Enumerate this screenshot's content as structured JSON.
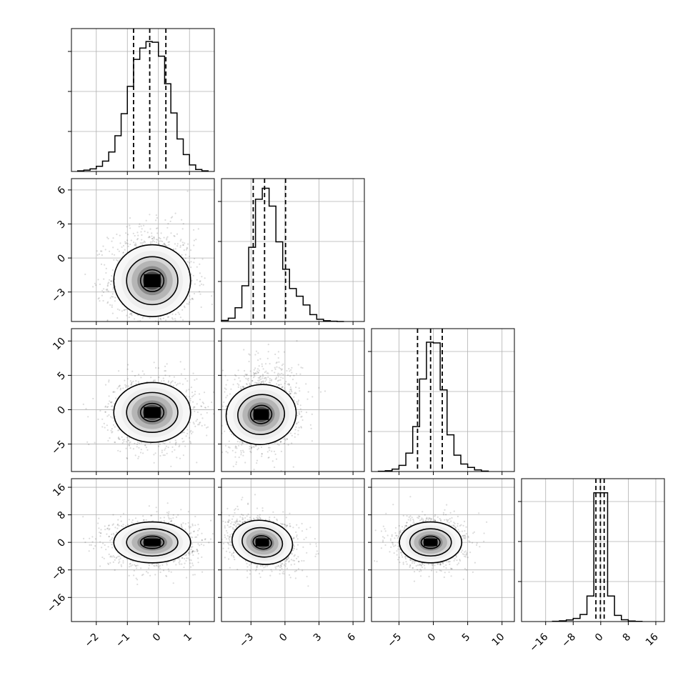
{
  "chart_data": {
    "type": "corner",
    "grid": true,
    "parameters": [
      {
        "id": "p0",
        "range": [
          -2.8,
          1.8
        ],
        "ticks": [
          -2,
          -1,
          0,
          1
        ],
        "tick_labels": [
          "−2",
          "−1",
          "0",
          "1"
        ],
        "hist_quantiles": [
          -0.8,
          -0.28,
          0.24
        ],
        "hist_edges": [
          -2.6,
          -2.4,
          -2.2,
          -2.0,
          -1.8,
          -1.6,
          -1.4,
          -1.2,
          -1.0,
          -0.8,
          -0.6,
          -0.4,
          -0.2,
          0.0,
          0.2,
          0.4,
          0.6,
          0.8,
          1.0,
          1.2,
          1.4,
          1.6
        ],
        "hist_counts": [
          2,
          4,
          8,
          16,
          32,
          60,
          110,
          178,
          262,
          345,
          380,
          400,
          398,
          355,
          270,
          180,
          100,
          52,
          20,
          6,
          2
        ],
        "hist_ylim": [
          0,
          440
        ]
      },
      {
        "id": "p1",
        "range": [
          -5.6,
          7.0
        ],
        "ticks": [
          -3,
          0,
          3,
          6
        ],
        "tick_labels": [
          "−3",
          "0",
          "3",
          "6"
        ],
        "hist_quantiles": [
          -2.8,
          -1.8,
          0.05
        ],
        "hist_edges": [
          -5.6,
          -5.0,
          -4.4,
          -3.8,
          -3.2,
          -2.6,
          -2.0,
          -1.4,
          -0.8,
          -0.2,
          0.4,
          1.0,
          1.6,
          2.2,
          2.8,
          3.4,
          4.0,
          4.6,
          5.2
        ],
        "hist_counts": [
          4,
          12,
          50,
          130,
          270,
          445,
          485,
          420,
          290,
          190,
          120,
          92,
          60,
          25,
          8,
          3,
          1,
          0
        ],
        "hist_ylim": [
          0,
          520
        ]
      },
      {
        "id": "p2",
        "range": [
          -9.0,
          11.8
        ],
        "ticks": [
          -5,
          0,
          5,
          10
        ],
        "tick_labels": [
          "−5",
          "0",
          "5",
          "10"
        ],
        "hist_quantiles": [
          -2.3,
          -0.4,
          1.3
        ],
        "hist_edges": [
          -8.0,
          -7.0,
          -6.0,
          -5.0,
          -4.0,
          -3.0,
          -2.0,
          -1.0,
          0.0,
          1.0,
          2.0,
          3.0,
          4.0,
          5.0,
          6.0,
          7.0,
          8.0
        ],
        "hist_counts": [
          2,
          6,
          18,
          45,
          135,
          330,
          680,
          950,
          945,
          600,
          270,
          120,
          55,
          30,
          12,
          3
        ],
        "hist_ylim": [
          0,
          1050
        ]
      },
      {
        "id": "p3",
        "range": [
          -23,
          18.5
        ],
        "ticks": [
          -16,
          -8,
          0,
          8,
          16
        ],
        "tick_labels": [
          "−16",
          "−8",
          "0",
          "8",
          "16"
        ],
        "hist_quantiles": [
          -1.4,
          -0.1,
          1.0
        ],
        "hist_edges": [
          -14,
          -12,
          -10,
          -8,
          -6,
          -4,
          -2,
          0,
          2,
          4,
          6,
          8,
          10,
          12
        ],
        "hist_counts": [
          3,
          8,
          18,
          35,
          80,
          290,
          1460,
          1460,
          290,
          70,
          20,
          6,
          2
        ],
        "hist_ylim": [
          0,
          1620
        ]
      }
    ],
    "pairs": [
      {
        "id": "p1_vs_p0",
        "x": 0,
        "y": 1,
        "center": [
          -0.2,
          -2.0
        ],
        "sx": 0.6,
        "sy": 1.6,
        "rho": 0.0,
        "contour_levels": [
          0.5,
          1.1,
          1.65
        ],
        "skew_y_up": 0.25
      },
      {
        "id": "p2_vs_p0",
        "x": 0,
        "y": 2,
        "center": [
          -0.2,
          -0.4
        ],
        "sx": 0.6,
        "sy": 2.2,
        "rho": 0.0,
        "contour_levels": [
          0.5,
          1.1,
          1.65
        ],
        "skew_y_up": 0
      },
      {
        "id": "p2_vs_p1",
        "x": 1,
        "y": 2,
        "center": [
          -2.1,
          -0.7
        ],
        "sx": 1.5,
        "sy": 2.2,
        "rho": 0.2,
        "contour_levels": [
          0.5,
          1.1,
          1.65
        ],
        "skew_y_up": 0.35
      },
      {
        "id": "p3_vs_p0",
        "x": 0,
        "y": 3,
        "center": [
          -0.2,
          0.0
        ],
        "sx": 0.6,
        "sy": 3.0,
        "rho": 0.0,
        "contour_levels": [
          0.5,
          1.1,
          1.65
        ],
        "skew_y_up": 0
      },
      {
        "id": "p3_vs_p1",
        "x": 1,
        "y": 3,
        "center": [
          -2.0,
          0.0
        ],
        "sx": 1.3,
        "sy": 3.2,
        "rho": -0.25,
        "contour_levels": [
          0.5,
          1.1,
          1.65
        ],
        "skew_y_up": 0
      },
      {
        "id": "p3_vs_p2",
        "x": 2,
        "y": 3,
        "center": [
          -0.4,
          0.0
        ],
        "sx": 2.2,
        "sy": 3.0,
        "rho": 0.0,
        "contour_levels": [
          0.5,
          1.1,
          1.65
        ],
        "skew_y_up": 0
      }
    ]
  }
}
